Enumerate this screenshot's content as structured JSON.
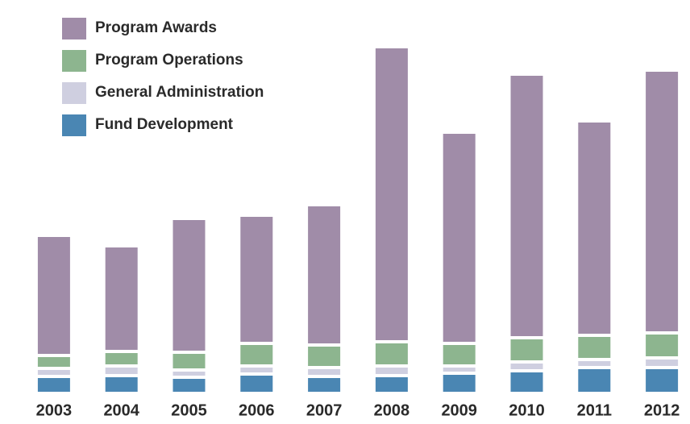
{
  "chart_data": {
    "type": "stacked-bar",
    "categories": [
      "2003",
      "2004",
      "2005",
      "2006",
      "2007",
      "2008",
      "2009",
      "2010",
      "2011",
      "2012"
    ],
    "series": [
      {
        "name": "Fund Development",
        "color": "#4a86b3",
        "values": [
          17,
          18,
          16,
          20,
          17,
          18,
          21,
          24,
          28,
          28
        ]
      },
      {
        "name": "General Administration",
        "color": "#cfcfe0",
        "values": [
          6,
          8,
          5,
          6,
          7,
          8,
          5,
          7,
          6,
          8
        ]
      },
      {
        "name": "Program Operations",
        "color": "#8db58f",
        "values": [
          12,
          14,
          18,
          24,
          24,
          26,
          24,
          26,
          26,
          27
        ]
      },
      {
        "name": "Program Awards",
        "color": "#a08ca8",
        "values": [
          145,
          127,
          162,
          155,
          170,
          362,
          258,
          323,
          262,
          322
        ]
      }
    ],
    "ylim": [
      0,
      430
    ]
  }
}
